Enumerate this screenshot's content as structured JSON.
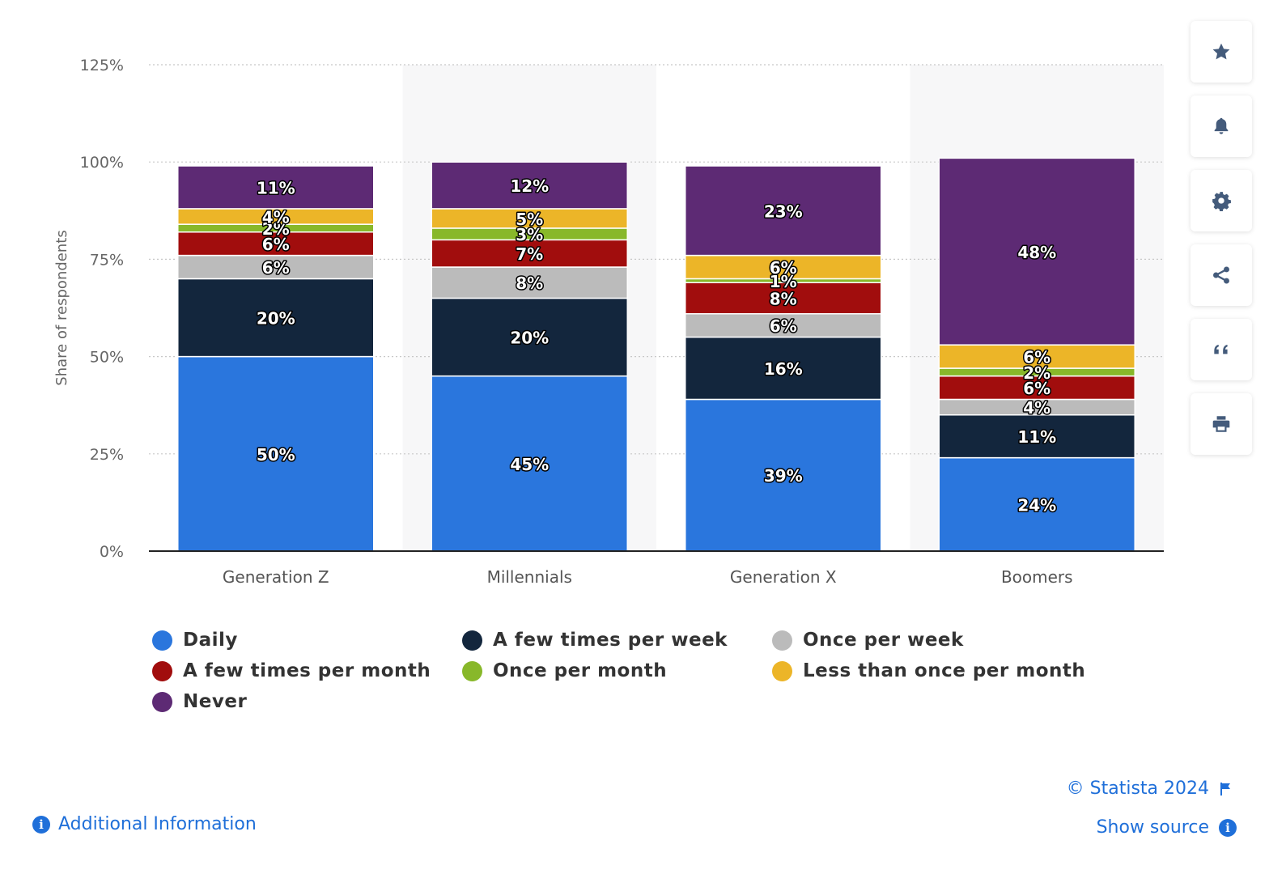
{
  "chart_data": {
    "type": "bar",
    "stacked": true,
    "ylabel": "Share of respondents",
    "ylim": [
      0,
      125
    ],
    "yticks": [
      0,
      25,
      50,
      75,
      100,
      125
    ],
    "ytick_labels": [
      "0%",
      "25%",
      "50%",
      "75%",
      "100%",
      "125%"
    ],
    "grid": true,
    "legend_position": "bottom",
    "categories": [
      "Generation Z",
      "Millennials",
      "Generation X",
      "Boomers"
    ],
    "series": [
      {
        "name": "Daily",
        "color": "#2a76dd",
        "values": [
          50,
          45,
          39,
          24
        ],
        "labels": [
          "50%",
          "45%",
          "39%",
          "24%"
        ]
      },
      {
        "name": "A few times per week",
        "color": "#13263d",
        "values": [
          20,
          20,
          16,
          11
        ],
        "labels": [
          "20%",
          "20%",
          "16%",
          "11%"
        ]
      },
      {
        "name": "Once per week",
        "color": "#bbbbbb",
        "values": [
          6,
          8,
          6,
          4
        ],
        "labels": [
          "6%",
          "8%",
          "6%",
          "4%"
        ]
      },
      {
        "name": "A few times per month",
        "color": "#a10d0d",
        "values": [
          6,
          7,
          8,
          6
        ],
        "labels": [
          "6%",
          "7%",
          "8%",
          "6%"
        ]
      },
      {
        "name": "Once per month",
        "color": "#88b82a",
        "values": [
          2,
          3,
          1,
          2
        ],
        "labels": [
          "2%",
          "3%",
          "1%",
          "2%"
        ]
      },
      {
        "name": "Less than once per month",
        "color": "#ecb528",
        "values": [
          4,
          5,
          6,
          6
        ],
        "labels": [
          "4%",
          "5%",
          "6%",
          "6%"
        ]
      },
      {
        "name": "Never",
        "color": "#5d2a74",
        "values": [
          11,
          12,
          23,
          48
        ],
        "labels": [
          "11%",
          "12%",
          "23%",
          "48%"
        ]
      }
    ]
  },
  "toolbar": {
    "buttons": [
      {
        "name": "favorite",
        "icon": "star-icon"
      },
      {
        "name": "notifications",
        "icon": "bell-icon"
      },
      {
        "name": "settings",
        "icon": "gear-icon"
      },
      {
        "name": "share",
        "icon": "share-icon"
      },
      {
        "name": "cite",
        "icon": "quote-icon"
      },
      {
        "name": "print",
        "icon": "print-icon"
      }
    ],
    "icon_color": "#445b7b"
  },
  "footer": {
    "copyright": "© Statista 2024",
    "show_source": "Show source",
    "additional_info": "Additional Information",
    "link_color": "#1f6fd9"
  }
}
